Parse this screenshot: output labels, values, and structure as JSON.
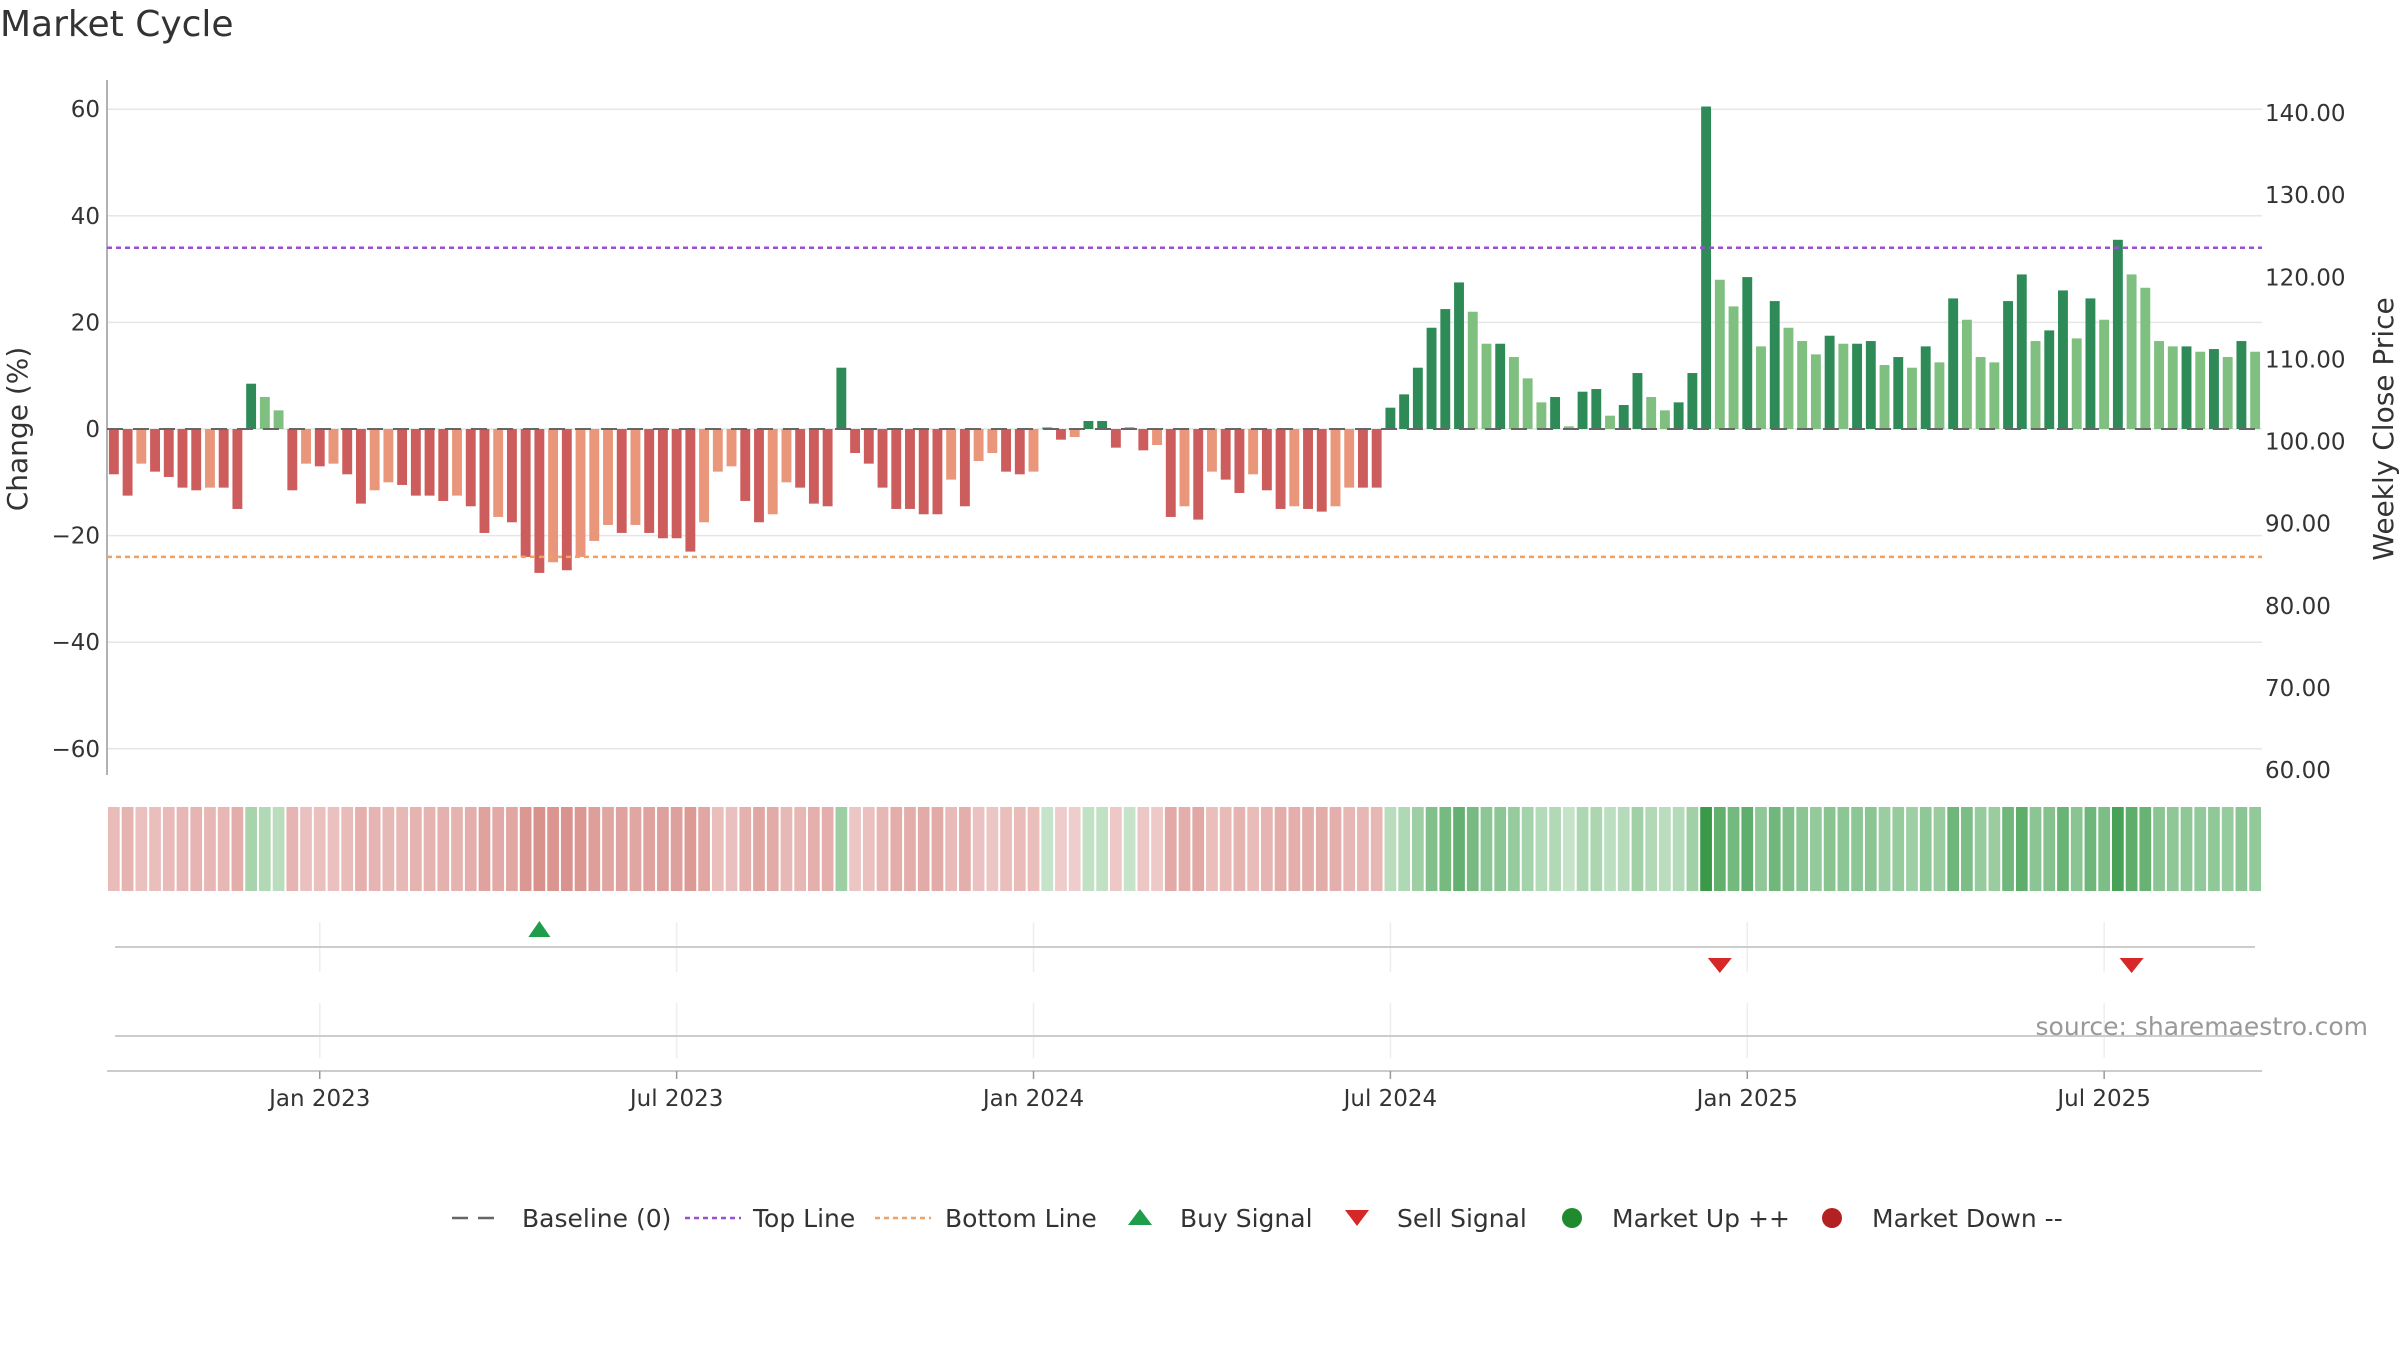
{
  "title": "Market Cycle",
  "source": "source: sharemaestro.com",
  "colors": {
    "strong_up": "#2e8b57",
    "mild_up": "#7fbf7f",
    "strong_down": "#cd5c5c",
    "mild_down": "#e9967a",
    "top_line": "#9a4fd0",
    "bottom_line": "#f0a060",
    "buy": "#1e9e4a",
    "sell": "#d62828",
    "market_up": "#1f8a2e",
    "market_down": "#b22222",
    "baseline": "#666666"
  },
  "chart_data": {
    "type": "bar",
    "y_left": {
      "label": "Change (%)",
      "ticks": [
        60,
        40,
        20,
        0,
        -20,
        -40,
        -60
      ],
      "tick_labels": [
        "60",
        "40",
        "20",
        "0",
        "−20",
        "−40",
        "−60"
      ],
      "range": [
        -66,
        66
      ]
    },
    "y_right": {
      "label": "Weekly Close Price",
      "ticks": [
        "140.00",
        "130.00",
        "120.00",
        "110.00",
        "100.00",
        "90.00",
        "80.00",
        "70.00",
        "60.00"
      ],
      "range": [
        60,
        140
      ]
    },
    "x_ticks": [
      "Jan 2023",
      "Jul 2023",
      "Jan 2024",
      "Jul 2024",
      "Jan 2025",
      "Jul 2025"
    ],
    "top_line": 34,
    "bottom_line": -24,
    "changes": [
      -8.5,
      -12.5,
      -6.5,
      -8,
      -9,
      -11,
      -11.5,
      -11,
      -11,
      -15,
      8.5,
      6,
      3.5,
      -11.5,
      -6.5,
      -7,
      -6.5,
      -8.5,
      -14,
      -11.5,
      -10,
      -10.5,
      -12.5,
      -12.5,
      -13.5,
      -12.5,
      -14.5,
      -19.5,
      -16.5,
      -17.5,
      -24,
      -27,
      -25,
      -26.5,
      -24,
      -21,
      -18,
      -19.5,
      -18,
      -19.5,
      -20.5,
      -20.5,
      -23,
      -17.5,
      -8,
      -7,
      -13.5,
      -17.5,
      -16,
      -10,
      -11,
      -14,
      -14.5,
      11.5,
      -4.5,
      -6.5,
      -11,
      -15,
      -15,
      -16,
      -16,
      -9.5,
      -14.5,
      -6,
      -4.5,
      -8,
      -8.5,
      -8,
      0,
      -2,
      -1.5,
      1.5,
      1.5,
      -3.5,
      0,
      -4,
      -3,
      -16.5,
      -14.5,
      -17,
      -8,
      -9.5,
      -12,
      -8.5,
      -11.5,
      -15,
      -14.5,
      -15,
      -15.5,
      -14.5,
      -11,
      -11,
      -11,
      4,
      6.5,
      11.5,
      19,
      22.5,
      27.5,
      22,
      16,
      16,
      13.5,
      9.5,
      5,
      6,
      0.5,
      7,
      7.5,
      2.5,
      4.5,
      10.5,
      6,
      3.5,
      5,
      10.5,
      60.5,
      28,
      23,
      28.5,
      15.5,
      24,
      19,
      16.5,
      14,
      17.5,
      16,
      16,
      16.5,
      12,
      13.5,
      11.5,
      15.5,
      12.5,
      24.5,
      20.5,
      13.5,
      12.5,
      24,
      29,
      16.5,
      18.5,
      26,
      17,
      24.5,
      20.5,
      35.5,
      29,
      26.5,
      16.5,
      15.5,
      15.5,
      14.5,
      15,
      13.5,
      16.5,
      14.5
    ],
    "buy_signal_indices": [
      31
    ],
    "sell_signal_indices": [
      117,
      147
    ],
    "legend": [
      {
        "key": "baseline",
        "label": "Baseline (0)"
      },
      {
        "key": "top_line",
        "label": "Top Line"
      },
      {
        "key": "bottom_line",
        "label": "Bottom Line"
      },
      {
        "key": "buy",
        "label": "Buy Signal"
      },
      {
        "key": "sell",
        "label": "Sell Signal"
      },
      {
        "key": "market_up",
        "label": "Market Up ++"
      },
      {
        "key": "market_down",
        "label": "Market Down --"
      }
    ]
  }
}
